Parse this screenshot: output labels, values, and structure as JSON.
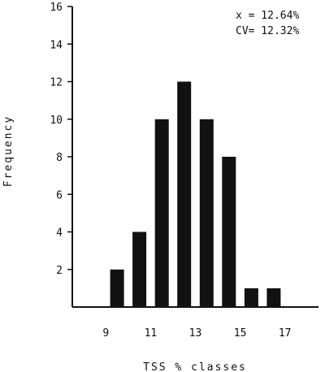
{
  "chart_data": {
    "type": "bar",
    "title": "",
    "xlabel": "TSS % classes",
    "ylabel": "Frequency",
    "x": [
      9.5,
      10.5,
      11.5,
      12.5,
      13.5,
      14.5,
      15.5,
      16.5
    ],
    "values": [
      2,
      4,
      10,
      12,
      10,
      8,
      1,
      1
    ],
    "xlim": [
      7.5,
      18.5
    ],
    "ylim": [
      0,
      16
    ],
    "xticks": [
      9,
      11,
      13,
      15,
      17
    ],
    "yticks": [
      2,
      4,
      6,
      8,
      10,
      12,
      14,
      16
    ],
    "grid": false,
    "annotations": [
      "x = 12.64%",
      "CV= 12.32%"
    ],
    "bar_color": "#111111"
  }
}
